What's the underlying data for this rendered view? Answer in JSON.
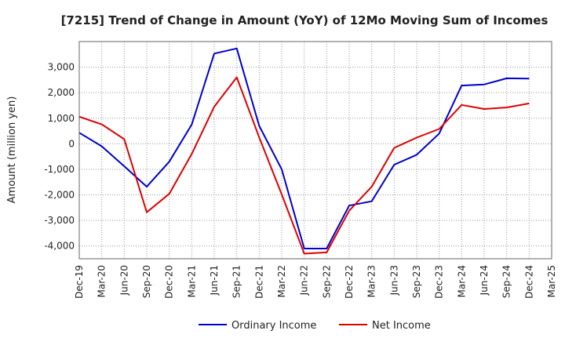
{
  "chart_data": {
    "type": "line",
    "title": "[7215]  Trend of Change in Amount (YoY) of 12Mo Moving Sum of Incomes",
    "xlabel": "",
    "ylabel": "Amount (million yen)",
    "ylim": [
      -4500,
      4000
    ],
    "yticks": [
      3000,
      2000,
      1000,
      0,
      -1000,
      -2000,
      -3000,
      -4000
    ],
    "ytick_labels": [
      "3,000",
      "2,000",
      "1,000",
      "0",
      "-1,000",
      "-2,000",
      "-3,000",
      "-4,000"
    ],
    "categories": [
      "Dec-19",
      "Mar-20",
      "Jun-20",
      "Sep-20",
      "Dec-20",
      "Mar-21",
      "Jun-21",
      "Sep-21",
      "Dec-21",
      "Mar-22",
      "Jun-22",
      "Sep-22",
      "Dec-22",
      "Mar-23",
      "Jun-23",
      "Sep-23",
      "Dec-23",
      "Mar-24",
      "Jun-24",
      "Sep-24",
      "Dec-24",
      "Mar-25"
    ],
    "series": [
      {
        "name": "Ordinary Income",
        "color": "#0000cc",
        "values": [
          430,
          -100,
          -880,
          -1680,
          -700,
          750,
          3530,
          3730,
          700,
          -1000,
          -4100,
          -4100,
          -2420,
          -2250,
          -820,
          -430,
          400,
          2280,
          2320,
          2560,
          2550,
          null
        ]
      },
      {
        "name": "Net Income",
        "color": "#dd0000",
        "values": [
          1060,
          760,
          180,
          -2680,
          -1960,
          -400,
          1450,
          2600,
          250,
          -1980,
          -4300,
          -4250,
          -2620,
          -1680,
          -160,
          240,
          580,
          1520,
          1360,
          1420,
          1580,
          null
        ]
      }
    ],
    "grid": true,
    "legend": "bottom-center"
  }
}
